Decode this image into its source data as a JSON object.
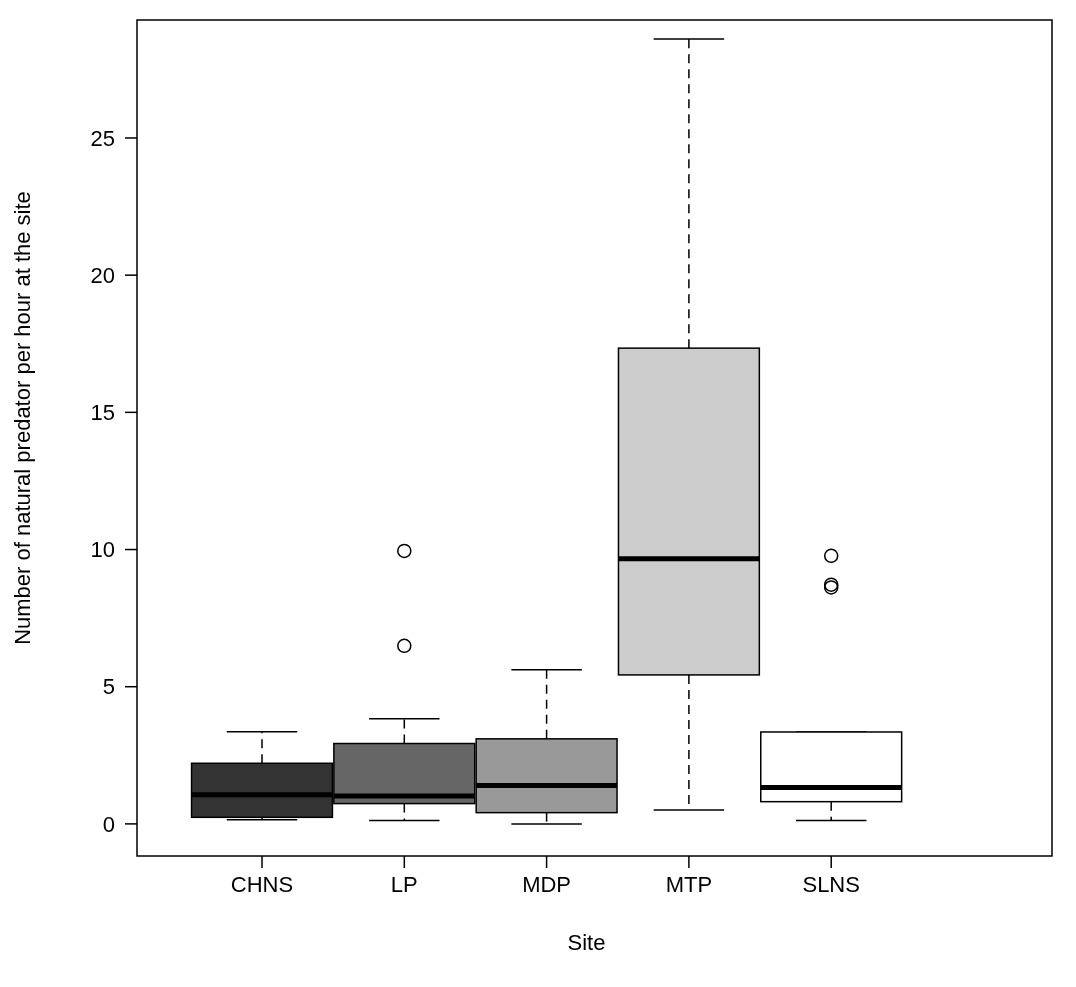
{
  "chart_data": {
    "type": "box",
    "xlabel": "Site",
    "ylabel": "Number of natural predator per hour at the site",
    "categories": [
      "CHNS",
      "LP",
      "MDP",
      "MTP",
      "SLNS"
    ],
    "colors": [
      "#333333",
      "#666666",
      "#999999",
      "#cccccc",
      "#ffffff"
    ],
    "boxes": [
      {
        "low": 0.15,
        "q1": 0.24,
        "median": 1.06,
        "q3": 2.21,
        "high": 3.36
      },
      {
        "low": 0.12,
        "q1": 0.74,
        "median": 1.02,
        "q3": 2.93,
        "high": 3.83,
        "outliers": [
          9.95,
          6.49
        ]
      },
      {
        "low": 0,
        "q1": 0.41,
        "median": 1.4,
        "q3": 3.1,
        "high": 5.62
      },
      {
        "low": 0.51,
        "q1": 5.43,
        "median": 9.66,
        "q3": 17.34,
        "high": 28.61
      },
      {
        "low": 0.12,
        "q1": 0.81,
        "median": 1.33,
        "q3": 3.35,
        "high": 3.35,
        "outliers": [
          9.77,
          8.72,
          8.62
        ]
      }
    ],
    "ylim": [
      -1.17,
      29.3
    ],
    "yticks": [
      0,
      5,
      10,
      15,
      20,
      25
    ],
    "grid": false
  }
}
